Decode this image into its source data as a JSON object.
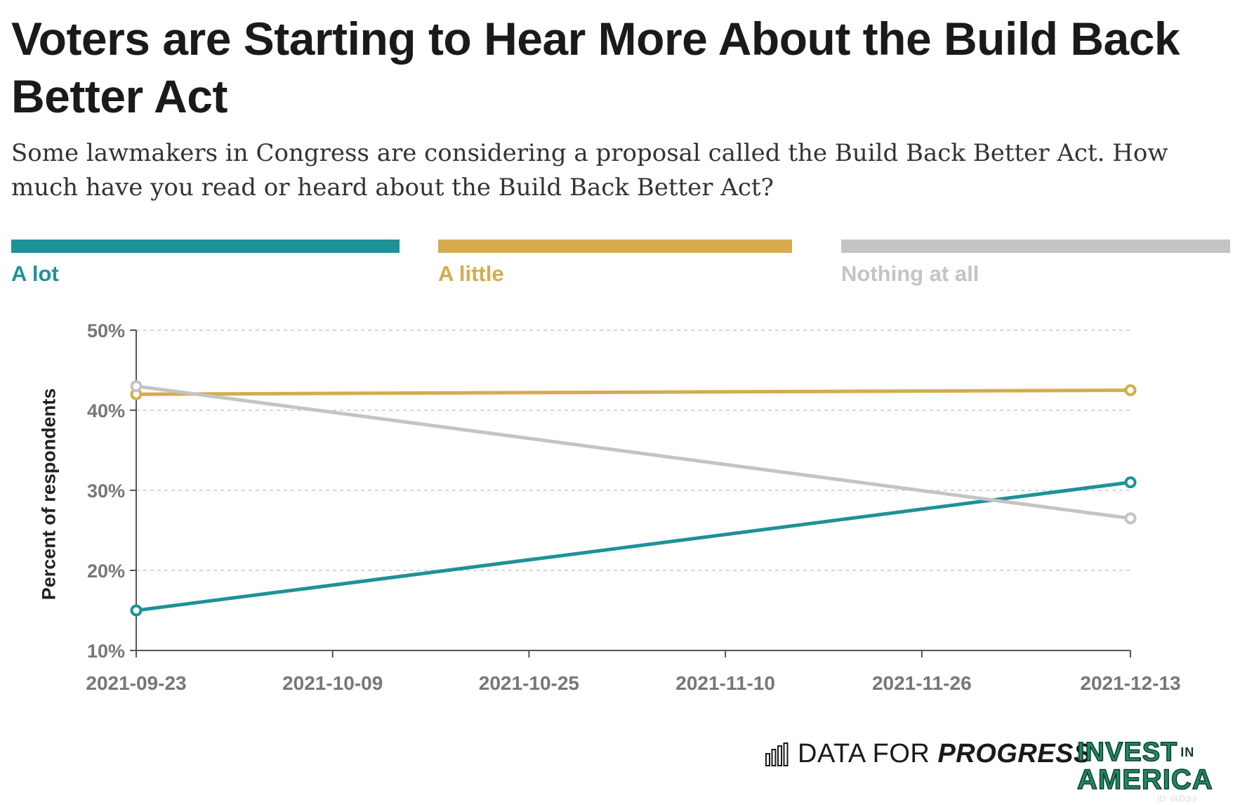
{
  "title": "Voters are Starting to Hear More About the Build Back Better Act",
  "subtitle": "Some lawmakers in Congress are considering a proposal called the Build Back Better Act. How much have you read or heard about the Build Back Better Act?",
  "legend": [
    {
      "label": "A lot",
      "color": "#1f9199"
    },
    {
      "label": "A little",
      "color": "#d4ac4f"
    },
    {
      "label": "Nothing at all",
      "color": "#c4c4c4"
    }
  ],
  "footer": {
    "dfp_prefix": "DATA FOR ",
    "dfp_emphasis": "PROGRESS",
    "invest_line1": "INVEST",
    "invest_in": "IN",
    "invest_line2": "AMERICA",
    "id_tag": "ID: 6kD3nl"
  },
  "chart_data": {
    "type": "line",
    "title": "Voters are Starting to Hear More About the Build Back Better Act",
    "xlabel": "",
    "ylabel": "Percent of respondents",
    "x": [
      "2021-09-23",
      "2021-12-13"
    ],
    "xticks": [
      "2021-09-23",
      "2021-10-09",
      "2021-10-25",
      "2021-11-10",
      "2021-11-26",
      "2021-12-13"
    ],
    "yticks": [
      10,
      20,
      30,
      40,
      50
    ],
    "ytick_suffix": "%",
    "ylim": [
      10,
      50
    ],
    "grid": "horizontal dashed",
    "legend_placement": "top",
    "series": [
      {
        "name": "A lot",
        "color": "#1f9199",
        "values": [
          15,
          31
        ]
      },
      {
        "name": "A little",
        "color": "#d4ac4f",
        "values": [
          42,
          42.5
        ]
      },
      {
        "name": "Nothing at all",
        "color": "#c4c4c4",
        "values": [
          43,
          26.5
        ]
      }
    ]
  }
}
